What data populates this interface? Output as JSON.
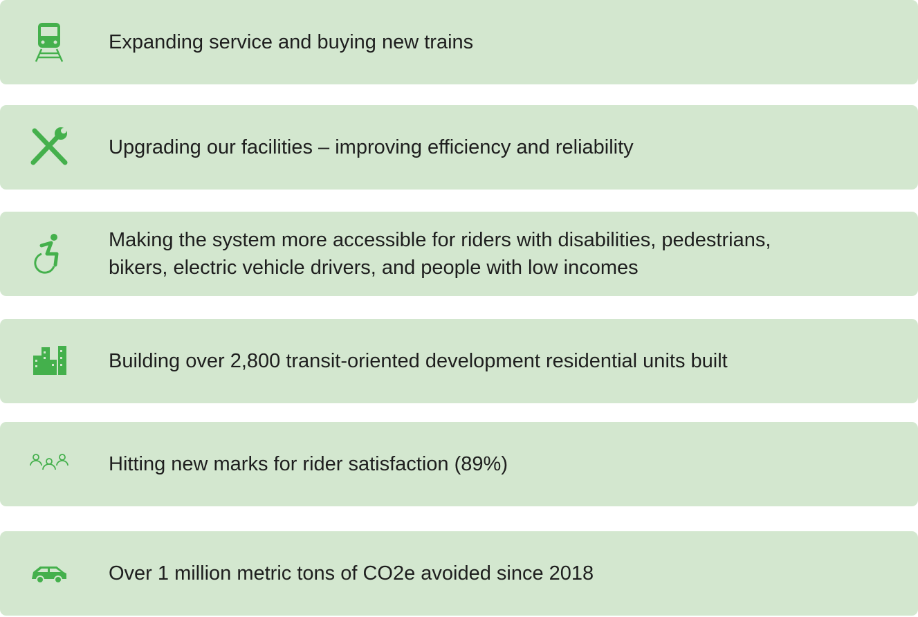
{
  "items": [
    {
      "lines": [
        "Expanding service and buying new trains"
      ]
    },
    {
      "lines": [
        "Upgrading our facilities – improving efficiency and reliability"
      ]
    },
    {
      "lines": [
        "Making the system more accessible for riders with disabilities, pedestrians,",
        "bikers, electric vehicle drivers, and people with low incomes"
      ]
    },
    {
      "lines": [
        "Building over 2,800 transit-oriented development residential units built"
      ]
    },
    {
      "lines": [
        "Hitting new marks for rider satisfaction (89%)"
      ]
    },
    {
      "lines": [
        "Over 1 million metric tons of CO2e avoided since 2018"
      ]
    }
  ]
}
